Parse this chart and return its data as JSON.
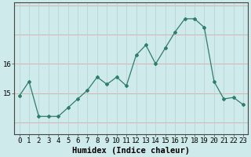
{
  "x": [
    0,
    1,
    2,
    3,
    4,
    5,
    6,
    7,
    8,
    9,
    10,
    11,
    12,
    13,
    14,
    15,
    16,
    17,
    18,
    19,
    20,
    21,
    22,
    23
  ],
  "y": [
    14.9,
    15.4,
    14.2,
    14.2,
    14.2,
    14.5,
    14.8,
    15.1,
    15.55,
    15.3,
    15.55,
    15.25,
    16.3,
    16.65,
    16.0,
    16.55,
    17.1,
    17.55,
    17.55,
    17.25,
    15.4,
    14.8,
    14.85,
    14.6
  ],
  "line_color": "#2e7d6e",
  "marker": "D",
  "markersize": 2.0,
  "linewidth": 0.9,
  "xlabel": "Humidex (Indice chaleur)",
  "xlabel_fontsize": 7.5,
  "yticks": [
    15,
    16
  ],
  "ylim": [
    13.6,
    18.1
  ],
  "xlim": [
    -0.5,
    23.5
  ],
  "bg_color": "#ceeaea",
  "grid_color_h": "#d8a8a8",
  "grid_color_v": "#b8d4d4",
  "tick_labelsize": 6.5,
  "title": ""
}
